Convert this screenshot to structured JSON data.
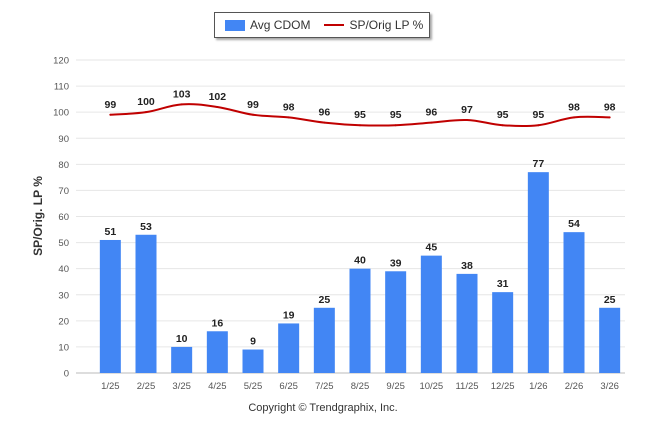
{
  "legend": {
    "bar_label": "Avg CDOM",
    "line_label": "SP/Orig LP %"
  },
  "copyright": "Copyright © Trendgraphix, Inc.",
  "colors": {
    "bar": "#4286f4",
    "line": "#c00000",
    "grid": "#e6e6e6",
    "axis_text": "#555555",
    "label_text": "#222222"
  },
  "chart_data": {
    "type": "bar",
    "title": "",
    "xlabel": "",
    "ylabel": "SP/Orig. LP %",
    "ylim": [
      0,
      120
    ],
    "yticks": [
      0,
      10,
      20,
      30,
      40,
      50,
      60,
      70,
      80,
      90,
      100,
      110,
      120
    ],
    "grid": true,
    "legend_position": "top-center",
    "categories": [
      "1/25",
      "2/25",
      "3/25",
      "4/25",
      "5/25",
      "6/25",
      "7/25",
      "8/25",
      "9/25",
      "10/25",
      "11/25",
      "12/25",
      "1/26",
      "2/26",
      "3/26"
    ],
    "series": [
      {
        "name": "Avg CDOM",
        "type": "bar",
        "values": [
          51,
          53,
          10,
          16,
          9,
          19,
          25,
          40,
          39,
          45,
          38,
          31,
          77,
          54,
          25
        ]
      },
      {
        "name": "SP/Orig LP %",
        "type": "line",
        "values": [
          99,
          100,
          103,
          102,
          99,
          98,
          96,
          95,
          95,
          96,
          97,
          95,
          95,
          98,
          98
        ]
      }
    ]
  }
}
